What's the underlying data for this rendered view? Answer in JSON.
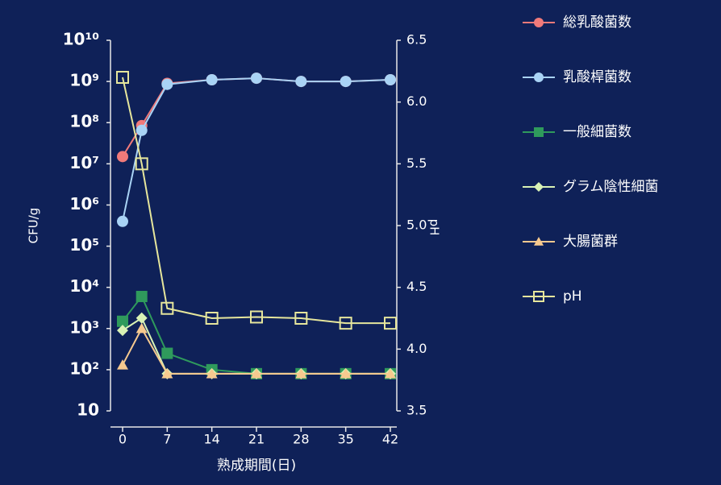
{
  "chart_data": {
    "type": "line",
    "x_label": "熟成期間(日)",
    "y_label": "CFU/g",
    "y2_label": "pH",
    "x": [
      0,
      3,
      7,
      14,
      21,
      28,
      35,
      42
    ],
    "xlim": [
      0,
      42
    ],
    "xticks": [
      0,
      7,
      14,
      21,
      28,
      35,
      42
    ],
    "ylim": [
      10,
      10000000000
    ],
    "log_y": true,
    "yticks": [
      10,
      {
        "value": 100,
        "label": "10²"
      },
      {
        "value": 1000,
        "label": "10³"
      },
      {
        "value": 10000,
        "label": "10⁴"
      },
      {
        "value": 100000,
        "label": "10⁵"
      },
      {
        "value": 1000000,
        "label": "10⁶"
      },
      {
        "value": 10000000,
        "label": "10⁷"
      },
      {
        "value": 100000000,
        "label": "10⁸"
      },
      {
        "value": 1000000000,
        "label": "10⁹"
      },
      {
        "value": 10000000000,
        "label": "10¹⁰"
      }
    ],
    "y2lim": [
      3.5,
      6.5
    ],
    "y2ticks": [
      {
        "value": 3.5,
        "label": "3.5"
      },
      {
        "value": 4,
        "label": "4.0"
      },
      {
        "value": 4.5,
        "label": "4.5"
      },
      {
        "value": 5,
        "label": "5.0"
      },
      {
        "value": 5.5,
        "label": "5.5"
      },
      {
        "value": 6,
        "label": "6.0"
      },
      {
        "value": 6.5,
        "label": "6.5"
      }
    ],
    "series": [
      {
        "name": "総乳酸菌数",
        "color": "#f07a7a",
        "marker": "circle",
        "values": [
          15000000,
          85000000,
          900000000,
          1100000000,
          1200000000,
          1000000000,
          1000000000,
          1100000000
        ]
      },
      {
        "name": "乳酸桿菌数",
        "color": "#a9d3f5",
        "marker": "circle",
        "values": [
          400000,
          65000000,
          850000000,
          1100000000,
          1200000000,
          1000000000,
          1000000000,
          1100000000
        ]
      },
      {
        "name": "一般細菌数",
        "color": "#2f9a5c",
        "marker": "square",
        "values": [
          1500,
          6000,
          250,
          100,
          80,
          80,
          80,
          80
        ]
      },
      {
        "name": "グラム陰性細菌",
        "color": "#d9f2b5",
        "marker": "diamond",
        "values": [
          900,
          1800,
          80,
          80,
          80,
          80,
          80,
          80
        ]
      },
      {
        "name": "大腸菌群",
        "color": "#f6c98f",
        "marker": "triangle",
        "values": [
          130,
          1000,
          80,
          80,
          80,
          80,
          80,
          80
        ]
      },
      {
        "name": "pH",
        "color": "#e6e69c",
        "marker": "open-square",
        "axis": "y2",
        "values": [
          6.2,
          5.5,
          4.33,
          4.25,
          4.26,
          4.25,
          4.21,
          4.21
        ]
      }
    ]
  }
}
